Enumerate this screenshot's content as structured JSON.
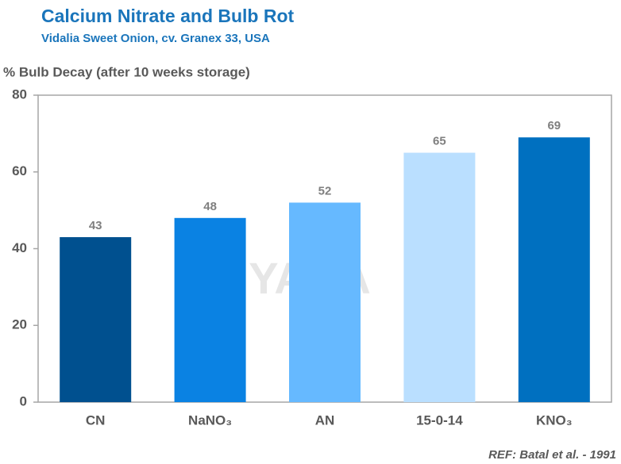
{
  "chart_data": {
    "type": "bar",
    "title": "Calcium Nitrate and Bulb Rot",
    "subtitle": "Vidalia  Sweet Onion,  cv. Granex 33, USA",
    "y_label": "% Bulb Decay (after 10 weeks storage)",
    "categories": [
      "CN",
      "NaNO₃",
      "AN",
      "15-0-14",
      "KNO₃"
    ],
    "values": [
      43,
      48,
      52,
      65,
      69
    ],
    "colors": [
      "#00508f",
      "#0a82e3",
      "#66b9ff",
      "#badfff",
      "#0070c0"
    ],
    "ylim": [
      0,
      80
    ],
    "yticks": [
      0,
      20,
      40,
      60,
      80
    ],
    "watermark": "YARA",
    "reference": "REF: Batal et al. - 1991"
  }
}
